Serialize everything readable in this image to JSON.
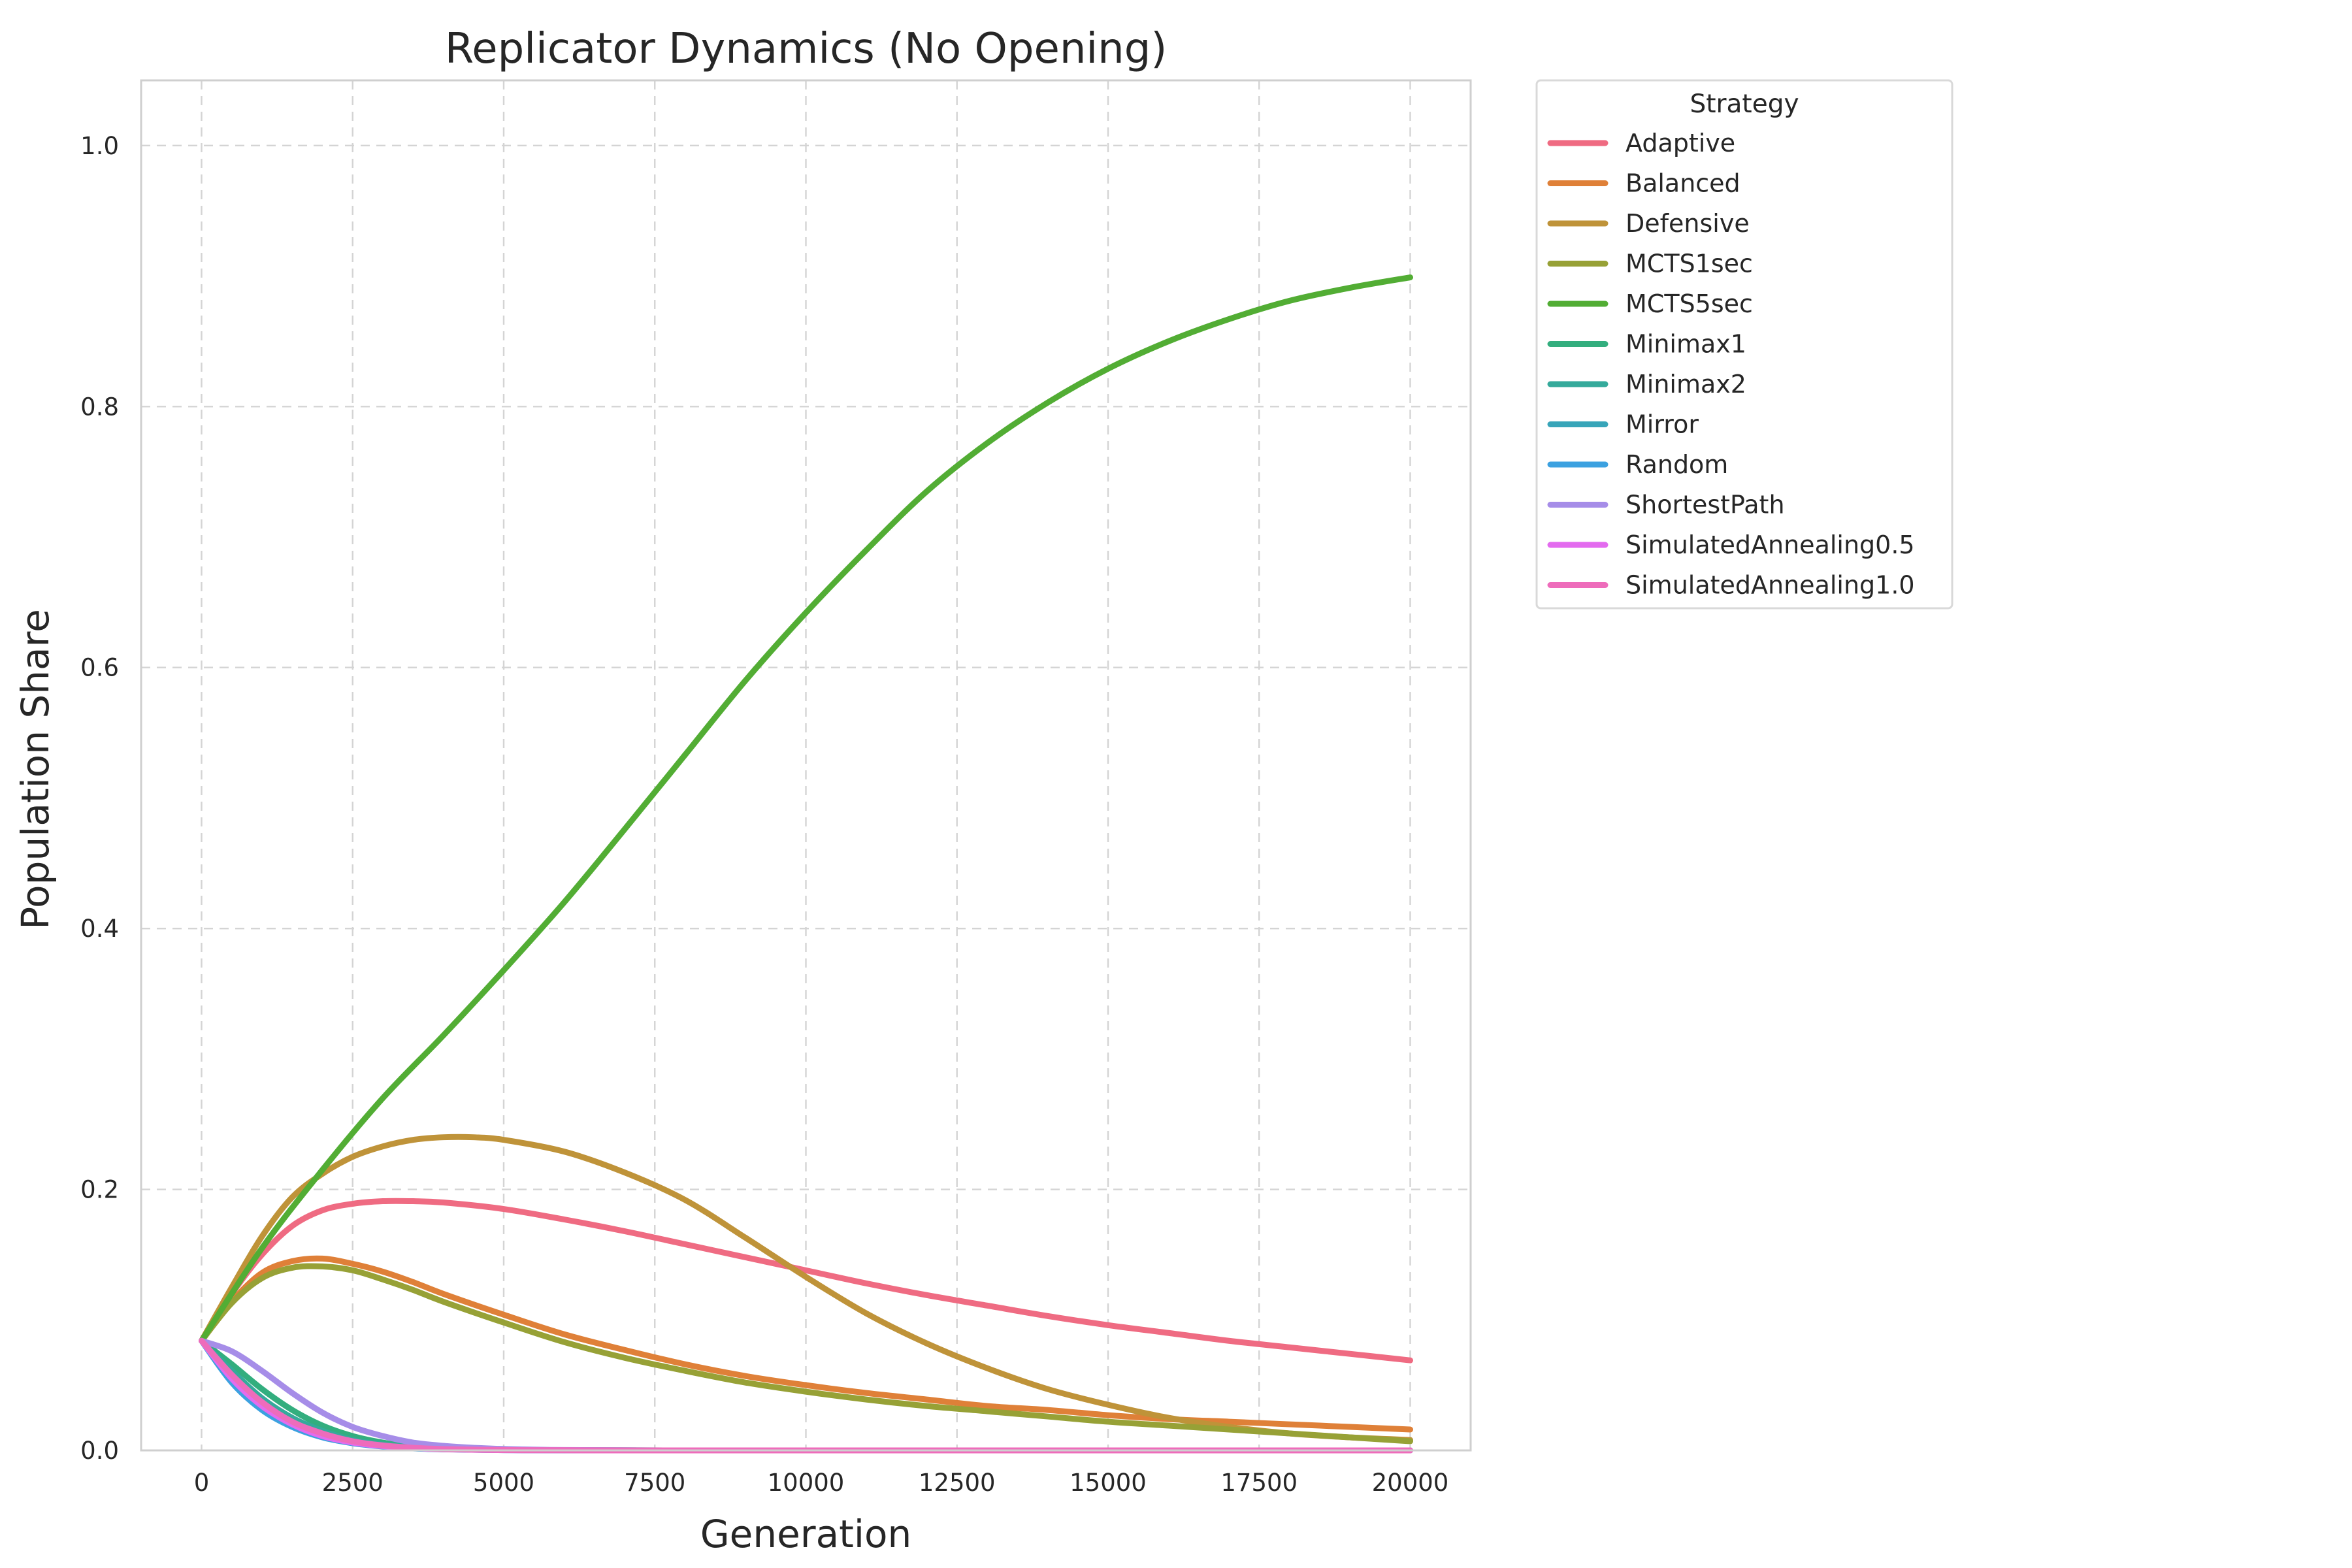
{
  "chart_data": {
    "type": "line",
    "title": "Replicator Dynamics (No Opening)",
    "xlabel": "Generation",
    "ylabel": "Population Share",
    "xlim": [
      -1000,
      21000
    ],
    "ylim": [
      0,
      1.05
    ],
    "x_ticks": [
      0,
      2500,
      5000,
      7500,
      10000,
      12500,
      15000,
      17500,
      20000
    ],
    "x_tick_labels": [
      "0",
      "2500",
      "5000",
      "7500",
      "10000",
      "12500",
      "15000",
      "17500",
      "20000"
    ],
    "y_ticks": [
      0.0,
      0.2,
      0.4,
      0.6,
      0.8,
      1.0
    ],
    "y_tick_labels": [
      "0.0",
      "0.2",
      "0.4",
      "0.6",
      "0.8",
      "1.0"
    ],
    "grid": true,
    "legend": {
      "title": "Strategy",
      "placement": "outside-right-top"
    },
    "series": [
      {
        "name": "Adaptive",
        "color": "#ef6b82",
        "x": [
          0,
          500,
          1000,
          1500,
          2000,
          2500,
          3000,
          3500,
          4000,
          5000,
          6000,
          7000,
          8000,
          9000,
          10000,
          11000,
          12000,
          13000,
          14000,
          15000,
          16000,
          17000,
          18000,
          19000,
          20000
        ],
        "y": [
          0.084,
          0.12,
          0.15,
          0.172,
          0.184,
          0.189,
          0.191,
          0.191,
          0.19,
          0.185,
          0.177,
          0.168,
          0.158,
          0.148,
          0.138,
          0.128,
          0.119,
          0.111,
          0.103,
          0.096,
          0.09,
          0.084,
          0.079,
          0.074,
          0.069
        ]
      },
      {
        "name": "Balanced",
        "color": "#df8038",
        "x": [
          0,
          500,
          1000,
          1500,
          2000,
          2500,
          3000,
          3500,
          4000,
          5000,
          6000,
          7000,
          8000,
          9000,
          10000,
          11000,
          12000,
          13000,
          14000,
          15000,
          16000,
          17000,
          18000,
          19000,
          20000
        ],
        "y": [
          0.084,
          0.114,
          0.136,
          0.145,
          0.147,
          0.143,
          0.137,
          0.129,
          0.12,
          0.104,
          0.089,
          0.077,
          0.066,
          0.057,
          0.05,
          0.044,
          0.039,
          0.034,
          0.031,
          0.027,
          0.024,
          0.022,
          0.02,
          0.018,
          0.016
        ]
      },
      {
        "name": "Defensive",
        "color": "#bf9339",
        "x": [
          0,
          500,
          1000,
          1500,
          2000,
          2500,
          3000,
          3500,
          4000,
          4500,
          5000,
          6000,
          7000,
          8000,
          9000,
          10000,
          11000,
          12000,
          13000,
          14000,
          15000,
          16000,
          17000,
          18000,
          19000,
          20000
        ],
        "y": [
          0.084,
          0.125,
          0.164,
          0.194,
          0.212,
          0.225,
          0.233,
          0.238,
          0.24,
          0.24,
          0.238,
          0.229,
          0.213,
          0.192,
          0.163,
          0.133,
          0.105,
          0.082,
          0.063,
          0.047,
          0.035,
          0.025,
          0.018,
          0.013,
          0.01,
          0.008
        ]
      },
      {
        "name": "MCTS1sec",
        "color": "#97a136",
        "x": [
          0,
          500,
          1000,
          1500,
          2000,
          2500,
          3000,
          3500,
          4000,
          5000,
          6000,
          7000,
          8000,
          9000,
          10000,
          11000,
          12000,
          13000,
          14000,
          15000,
          16000,
          17000,
          18000,
          19000,
          20000
        ],
        "y": [
          0.084,
          0.113,
          0.132,
          0.14,
          0.141,
          0.138,
          0.131,
          0.123,
          0.114,
          0.098,
          0.083,
          0.071,
          0.061,
          0.052,
          0.045,
          0.039,
          0.034,
          0.03,
          0.026,
          0.022,
          0.019,
          0.016,
          0.013,
          0.01,
          0.007
        ]
      },
      {
        "name": "MCTS5sec",
        "color": "#52ad34",
        "x": [
          0,
          1000,
          2000,
          3000,
          4000,
          5000,
          6000,
          7000,
          8000,
          9000,
          10000,
          11000,
          12000,
          13000,
          14000,
          15000,
          16000,
          17000,
          18000,
          19000,
          20000
        ],
        "y": [
          0.084,
          0.155,
          0.215,
          0.27,
          0.318,
          0.368,
          0.42,
          0.476,
          0.533,
          0.59,
          0.642,
          0.69,
          0.735,
          0.772,
          0.803,
          0.829,
          0.85,
          0.867,
          0.881,
          0.891,
          0.899
        ]
      },
      {
        "name": "Minimax1",
        "color": "#33ae7e",
        "x": [
          0,
          500,
          1000,
          1500,
          2000,
          2500,
          3000,
          3500,
          4000,
          5000,
          6000,
          8000,
          10000,
          15000,
          20000
        ],
        "y": [
          0.084,
          0.066,
          0.047,
          0.031,
          0.019,
          0.011,
          0.006,
          0.003,
          0.0015,
          0.0005,
          0.0002,
          0.0,
          0.0,
          0.0,
          0.0
        ]
      },
      {
        "name": "Minimax2",
        "color": "#35aa9b",
        "x": [
          0,
          500,
          1000,
          1500,
          2000,
          2500,
          3000,
          3500,
          4000,
          5000,
          6000,
          8000,
          10000,
          15000,
          20000
        ],
        "y": [
          0.084,
          0.061,
          0.04,
          0.025,
          0.015,
          0.008,
          0.0045,
          0.0025,
          0.0012,
          0.0004,
          0.0001,
          0.0,
          0.0,
          0.0,
          0.0
        ]
      },
      {
        "name": "Mirror",
        "color": "#38a5b9",
        "x": [
          0,
          500,
          1000,
          1500,
          2000,
          2500,
          3000,
          3500,
          4000,
          5000,
          6000,
          8000,
          10000,
          15000,
          20000
        ],
        "y": [
          0.084,
          0.057,
          0.035,
          0.021,
          0.012,
          0.0065,
          0.0035,
          0.0018,
          0.0009,
          0.0003,
          0.0001,
          0.0,
          0.0,
          0.0,
          0.0
        ]
      },
      {
        "name": "Random",
        "color": "#3ca1e0",
        "x": [
          0,
          500,
          1000,
          1500,
          2000,
          2500,
          3000,
          3500,
          4000,
          5000,
          6000,
          8000,
          10000,
          15000,
          20000
        ],
        "y": [
          0.084,
          0.052,
          0.031,
          0.018,
          0.01,
          0.0055,
          0.003,
          0.0015,
          0.0008,
          0.0002,
          0.0001,
          0.0,
          0.0,
          0.0,
          0.0
        ]
      },
      {
        "name": "ShortestPath",
        "color": "#a68de8",
        "x": [
          0,
          500,
          1000,
          1500,
          2000,
          2500,
          3000,
          3500,
          4000,
          4500,
          5000,
          6000,
          8000,
          10000,
          15000,
          20000
        ],
        "y": [
          0.084,
          0.076,
          0.061,
          0.044,
          0.029,
          0.018,
          0.011,
          0.006,
          0.0035,
          0.002,
          0.0011,
          0.0003,
          0.0,
          0.0,
          0.0,
          0.0
        ]
      },
      {
        "name": "SimulatedAnnealing0.5",
        "color": "#e36bef",
        "x": [
          0,
          500,
          1000,
          1500,
          2000,
          2500,
          3000,
          3500,
          4000,
          5000,
          6000,
          8000,
          10000,
          15000,
          20000
        ],
        "y": [
          0.084,
          0.055,
          0.034,
          0.02,
          0.011,
          0.006,
          0.0033,
          0.0017,
          0.0009,
          0.0002,
          0.0001,
          0.0,
          0.0,
          0.0,
          0.0
        ]
      },
      {
        "name": "SimulatedAnnealing1.0",
        "color": "#ee6cbb",
        "x": [
          0,
          500,
          1000,
          1500,
          2000,
          2500,
          3000,
          3500,
          4000,
          5000,
          6000,
          8000,
          10000,
          15000,
          20000
        ],
        "y": [
          0.084,
          0.058,
          0.037,
          0.022,
          0.013,
          0.007,
          0.0038,
          0.002,
          0.001,
          0.0003,
          0.0001,
          0.0,
          0.0,
          0.0,
          0.0
        ]
      }
    ]
  }
}
